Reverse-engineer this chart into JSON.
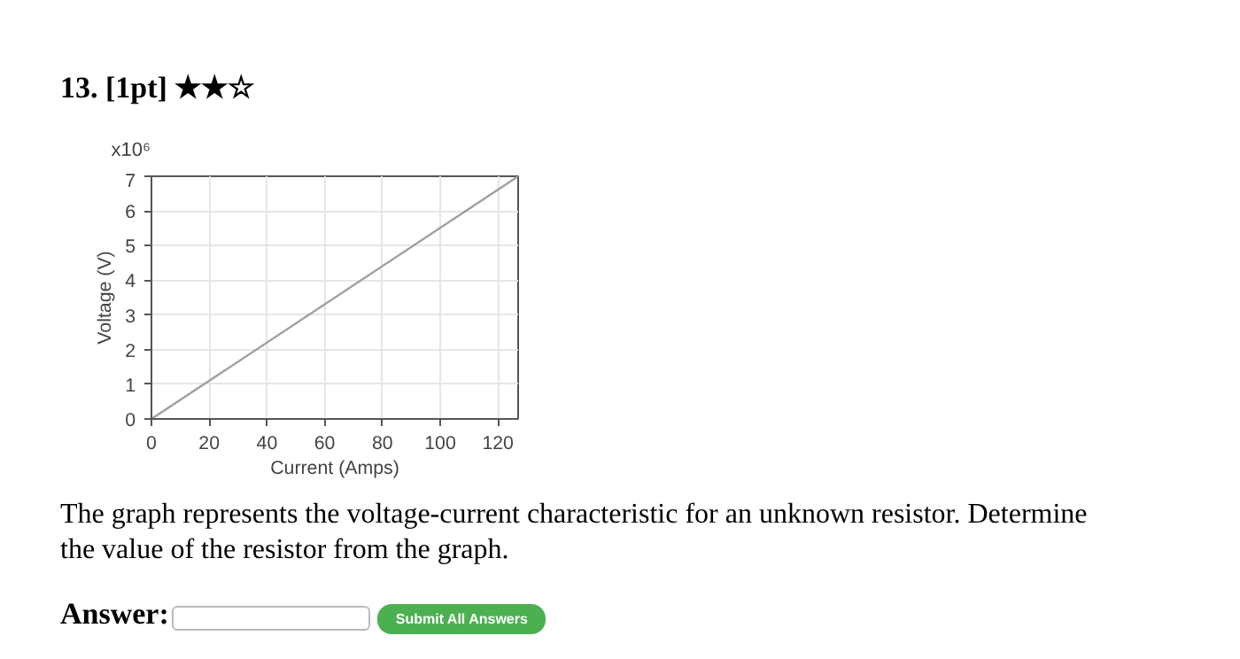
{
  "chart_data": {
    "type": "line",
    "title": "13. [1pt] ★★☆",
    "xlabel": "Current (Amps)",
    "ylabel": "Voltage (V)",
    "series": [
      {
        "color": "#a0a0a0",
        "x": [
          0,
          127
        ],
        "values": [
          0,
          7
        ]
      }
    ],
    "xlim": [
      0,
      127
    ],
    "xticks": [
      0,
      20,
      40,
      60,
      80,
      100,
      120
    ],
    "ylim": [
      0,
      7
    ],
    "yticks": [
      0,
      1,
      2,
      3,
      4,
      5,
      6,
      7
    ],
    "grid": true,
    "line_style": "solid",
    "annotations": [
      "The graph represents the voltage-current characteristic for an unknown resistor. Determine the value of the resistor from the graph.",
      "Answer:",
      "Submit All Answers",
      "x10⁶"
    ]
  }
}
